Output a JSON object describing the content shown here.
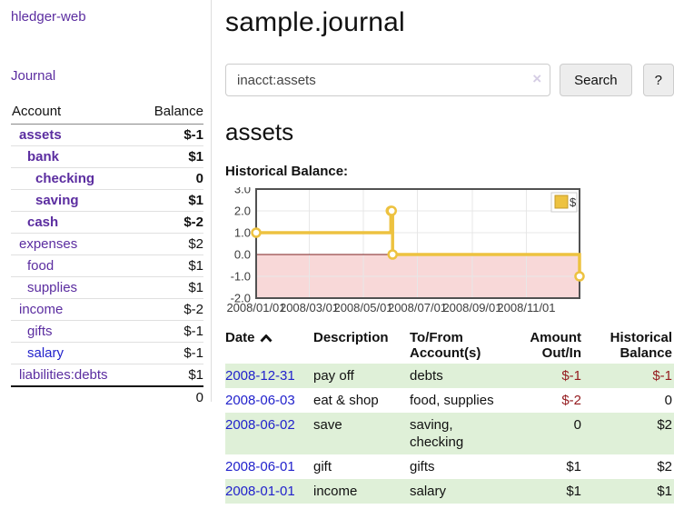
{
  "app": {
    "brand": "hledger-web",
    "nav_journal": "Journal"
  },
  "colors": {
    "accent_purple": "#5b2da0",
    "link_blue": "#2222cc",
    "negative_dark": "#941a1e",
    "negative_light": "#c47170",
    "row_green": "#dff0d8",
    "chart_line": "#edc240",
    "negative_region": "#f8d8d8",
    "zero_line": "#7d1f1f"
  },
  "sidebar": {
    "headers": {
      "account": "Account",
      "balance": "Balance"
    },
    "rows": [
      {
        "name": "assets",
        "balance": "$-1"
      },
      {
        "name": "bank",
        "balance": "$1"
      },
      {
        "name": "checking",
        "balance": "0"
      },
      {
        "name": "saving",
        "balance": "$1"
      },
      {
        "name": "cash",
        "balance": "$-2"
      },
      {
        "name": "expenses",
        "balance": "$2"
      },
      {
        "name": "food",
        "balance": "$1"
      },
      {
        "name": "supplies",
        "balance": "$1"
      },
      {
        "name": "income",
        "balance": "$-2"
      },
      {
        "name": "gifts",
        "balance": "$-1"
      },
      {
        "name": "salary",
        "balance": "$-1"
      },
      {
        "name": "liabilities:debts",
        "balance": "$1"
      }
    ],
    "total": "0"
  },
  "header": {
    "title": "sample.journal"
  },
  "search": {
    "value": "inacct:assets",
    "clear_icon": "×",
    "button_label": "Search",
    "help_label": "?"
  },
  "register": {
    "heading": "assets",
    "chart_label": "Historical Balance:",
    "headers": {
      "date": "Date",
      "description": "Description",
      "tofrom_line1": "To/From",
      "tofrom_line2": "Account(s)",
      "amount_line1": "Amount",
      "amount_line2": "Out/In",
      "balance_line1": "Historical",
      "balance_line2": "Balance"
    },
    "sort_icon": "chevron-up",
    "rows": [
      {
        "date": "2008-12-31",
        "description": "pay off",
        "accounts": "debts",
        "amount": "$-1",
        "balance": "$-1"
      },
      {
        "date": "2008-06-03",
        "description": "eat & shop",
        "accounts": "food, supplies",
        "amount": "$-2",
        "balance": "0"
      },
      {
        "date": "2008-06-02",
        "description": "save",
        "accounts": "saving, checking",
        "amount": "0",
        "balance": "$2"
      },
      {
        "date": "2008-06-01",
        "description": "gift",
        "accounts": "gifts",
        "amount": "$1",
        "balance": "$2"
      },
      {
        "date": "2008-01-01",
        "description": "income",
        "accounts": "salary",
        "amount": "$1",
        "balance": "$1"
      }
    ]
  },
  "chart_data": {
    "type": "line",
    "step": true,
    "title": "Historical Balance",
    "series": [
      {
        "name": "$",
        "color": "#edc240",
        "points": [
          [
            "2008-01-01",
            1
          ],
          [
            "2008-06-01",
            2
          ],
          [
            "2008-06-02",
            2
          ],
          [
            "2008-06-03",
            0
          ],
          [
            "2008-12-31",
            -1
          ]
        ]
      }
    ],
    "x_ticks": [
      "2008/01/01",
      "2008/03/01",
      "2008/05/01",
      "2008/07/01",
      "2008/09/01",
      "2008/11/01"
    ],
    "y_ticks": [
      3.0,
      2.0,
      1.0,
      0.0,
      -1.0,
      -2.0
    ],
    "xlim": [
      "2008-01-01",
      "2008-12-31"
    ],
    "ylim": [
      -2,
      3
    ],
    "grid": true,
    "legend_position": "top-right",
    "negative_region_color": "#f8d8d8",
    "zero_line_color": "#7d1f1f"
  }
}
